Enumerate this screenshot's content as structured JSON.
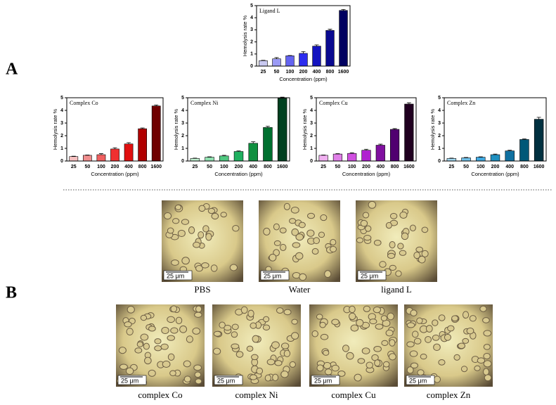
{
  "chart_data": [
    {
      "type": "bar",
      "title": "Ligand L",
      "xlabel": "Concentration (ppm)",
      "ylabel": "Hemolysis rate %",
      "categories": [
        "25",
        "50",
        "100",
        "200",
        "400",
        "800",
        "1600"
      ],
      "values": [
        0.45,
        0.6,
        0.85,
        1.05,
        1.65,
        2.95,
        4.6
      ],
      "errors": [
        0.03,
        0.1,
        0.03,
        0.15,
        0.1,
        0.1,
        0.08
      ],
      "colors": [
        "#c8c8f0",
        "#9a9af5",
        "#6464f0",
        "#2c2cee",
        "#1414c0",
        "#0a0a90",
        "#000060"
      ],
      "ylim": [
        0,
        5
      ],
      "yticks": [
        0,
        1,
        2,
        3,
        4,
        5
      ]
    },
    {
      "type": "bar",
      "title": "Complex Co",
      "xlabel": "Concentration (ppm)",
      "ylabel": "Hemolysis rate %",
      "categories": [
        "25",
        "50",
        "100",
        "200",
        "400",
        "800",
        "1600"
      ],
      "values": [
        0.35,
        0.45,
        0.5,
        0.95,
        1.35,
        2.55,
        4.35
      ],
      "errors": [
        0.03,
        0.03,
        0.08,
        0.1,
        0.1,
        0.06,
        0.08
      ],
      "colors": [
        "#f5c0c0",
        "#f08e8e",
        "#f06060",
        "#f03030",
        "#e01010",
        "#b00000",
        "#700000"
      ],
      "ylim": [
        0,
        5
      ],
      "yticks": [
        0,
        1,
        2,
        3,
        4,
        5
      ]
    },
    {
      "type": "bar",
      "title": "Complex Ni",
      "xlabel": "Concentration (ppm)",
      "ylabel": "Hemolysis rate %",
      "categories": [
        "25",
        "50",
        "100",
        "200",
        "400",
        "800",
        "1600"
      ],
      "values": [
        0.2,
        0.3,
        0.4,
        0.75,
        1.4,
        2.65,
        4.95
      ],
      "errors": [
        0.03,
        0.03,
        0.05,
        0.05,
        0.12,
        0.1,
        0.1
      ],
      "colors": [
        "#c0f0d0",
        "#90e0b0",
        "#50c880",
        "#20b060",
        "#109040",
        "#007030",
        "#004020"
      ],
      "ylim": [
        0,
        5
      ],
      "yticks": [
        0,
        1,
        2,
        3,
        4,
        5
      ]
    },
    {
      "type": "bar",
      "title": "Complex Cu",
      "xlabel": "Concentration (ppm)",
      "ylabel": "Hemolysis rate %",
      "categories": [
        "25",
        "50",
        "100",
        "200",
        "400",
        "800",
        "1600"
      ],
      "values": [
        0.45,
        0.55,
        0.6,
        0.85,
        1.25,
        2.5,
        4.5
      ],
      "errors": [
        0.03,
        0.03,
        0.05,
        0.08,
        0.08,
        0.06,
        0.1
      ],
      "colors": [
        "#f0b0f0",
        "#e080e8",
        "#d050e0",
        "#b020d0",
        "#8010a0",
        "#500070",
        "#200020"
      ],
      "ylim": [
        0,
        5
      ],
      "yticks": [
        0,
        1,
        2,
        3,
        4,
        5
      ]
    },
    {
      "type": "bar",
      "title": "Complex Zn",
      "xlabel": "Concentration (ppm)",
      "ylabel": "Hemolysis rate %",
      "categories": [
        "25",
        "50",
        "100",
        "200",
        "400",
        "800",
        "1600"
      ],
      "values": [
        0.2,
        0.25,
        0.3,
        0.5,
        0.8,
        1.7,
        3.3
      ],
      "errors": [
        0.03,
        0.03,
        0.03,
        0.05,
        0.05,
        0.05,
        0.15
      ],
      "colors": [
        "#a0d8f0",
        "#70c0e8",
        "#40a8e0",
        "#2090c0",
        "#1070a0",
        "#005878",
        "#003040"
      ],
      "ylim": [
        0,
        5
      ],
      "yticks": [
        0,
        1,
        2,
        3,
        4,
        5
      ]
    }
  ],
  "panel_labels": [
    "A",
    "B"
  ],
  "micrographs": [
    {
      "caption": "PBS",
      "scale_bar": "25 μm"
    },
    {
      "caption": "Water",
      "scale_bar": "25 μm"
    },
    {
      "caption": "ligand L",
      "scale_bar": "25 μm"
    },
    {
      "caption": "complex Co",
      "scale_bar": "25 μm"
    },
    {
      "caption": "complex Ni",
      "scale_bar": "25 μm"
    },
    {
      "caption": "complex Cu",
      "scale_bar": "25 μm"
    },
    {
      "caption": "complex Zn",
      "scale_bar": "25 μm"
    }
  ]
}
